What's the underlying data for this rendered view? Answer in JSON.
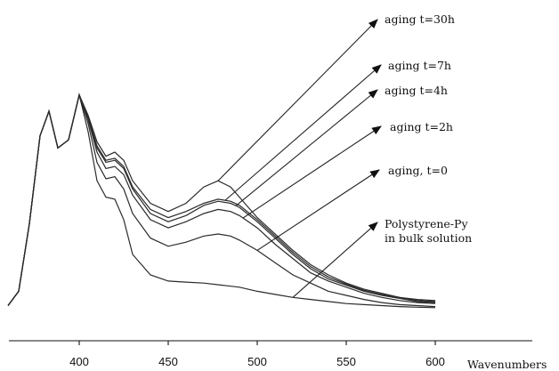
{
  "chart_data": {
    "type": "line",
    "xlabel": "Wavenumbers",
    "ylabel": "",
    "xlim": [
      355,
      600
    ],
    "x_ticks": [
      400,
      450,
      500,
      550,
      600
    ],
    "grid": false,
    "series": [
      {
        "name": "aging t=30h",
        "x": [
          360,
          366,
          372,
          378,
          383,
          388,
          394,
          400,
          405,
          410,
          415,
          420,
          425,
          430,
          440,
          450,
          460,
          470,
          478,
          485,
          490,
          500,
          510,
          520,
          530,
          540,
          550,
          560,
          570,
          580,
          590,
          600
        ],
        "y": [
          0.05,
          0.12,
          0.45,
          0.88,
          1.0,
          0.82,
          0.86,
          1.08,
          0.98,
          0.85,
          0.78,
          0.8,
          0.76,
          0.66,
          0.55,
          0.51,
          0.55,
          0.63,
          0.66,
          0.63,
          0.58,
          0.48,
          0.4,
          0.32,
          0.25,
          0.2,
          0.16,
          0.13,
          0.11,
          0.09,
          0.08,
          0.075
        ]
      },
      {
        "name": "aging t=7h",
        "x": [
          360,
          366,
          372,
          378,
          383,
          388,
          394,
          400,
          405,
          410,
          415,
          420,
          425,
          430,
          440,
          450,
          460,
          470,
          478,
          485,
          490,
          500,
          510,
          520,
          530,
          540,
          550,
          560,
          570,
          580,
          590,
          600
        ],
        "y": [
          0.05,
          0.12,
          0.45,
          0.88,
          1.0,
          0.82,
          0.86,
          1.08,
          0.97,
          0.83,
          0.76,
          0.77,
          0.73,
          0.63,
          0.52,
          0.48,
          0.51,
          0.55,
          0.57,
          0.56,
          0.54,
          0.47,
          0.39,
          0.31,
          0.24,
          0.19,
          0.155,
          0.125,
          0.105,
          0.09,
          0.075,
          0.07
        ]
      },
      {
        "name": "aging t=4h",
        "x": [
          360,
          366,
          372,
          378,
          383,
          388,
          394,
          400,
          405,
          410,
          415,
          420,
          425,
          430,
          440,
          450,
          460,
          470,
          478,
          485,
          490,
          500,
          510,
          520,
          530,
          540,
          550,
          560,
          570,
          580,
          590,
          600
        ],
        "y": [
          0.05,
          0.12,
          0.45,
          0.88,
          1.0,
          0.82,
          0.86,
          1.08,
          0.97,
          0.82,
          0.75,
          0.76,
          0.72,
          0.62,
          0.5,
          0.46,
          0.49,
          0.54,
          0.56,
          0.55,
          0.53,
          0.46,
          0.38,
          0.3,
          0.23,
          0.18,
          0.15,
          0.12,
          0.1,
          0.085,
          0.07,
          0.065
        ]
      },
      {
        "name": "aging t=2h",
        "x": [
          360,
          366,
          372,
          378,
          383,
          388,
          394,
          400,
          405,
          410,
          415,
          420,
          425,
          430,
          440,
          450,
          460,
          470,
          478,
          485,
          490,
          500,
          510,
          520,
          530,
          540,
          550,
          560,
          570,
          580,
          590,
          600
        ],
        "y": [
          0.05,
          0.12,
          0.45,
          0.88,
          1.0,
          0.82,
          0.86,
          1.08,
          0.96,
          0.8,
          0.72,
          0.73,
          0.69,
          0.59,
          0.47,
          0.43,
          0.46,
          0.5,
          0.52,
          0.51,
          0.49,
          0.43,
          0.35,
          0.28,
          0.21,
          0.17,
          0.14,
          0.11,
          0.09,
          0.075,
          0.065,
          0.06
        ]
      },
      {
        "name": "aging, t=0",
        "x": [
          360,
          366,
          372,
          378,
          383,
          388,
          394,
          400,
          405,
          410,
          415,
          420,
          425,
          430,
          440,
          450,
          460,
          470,
          478,
          485,
          490,
          500,
          510,
          520,
          530,
          540,
          550,
          560,
          570,
          580,
          590,
          600
        ],
        "y": [
          0.05,
          0.12,
          0.45,
          0.88,
          1.0,
          0.82,
          0.86,
          1.08,
          0.94,
          0.75,
          0.67,
          0.68,
          0.62,
          0.5,
          0.38,
          0.34,
          0.36,
          0.39,
          0.4,
          0.39,
          0.37,
          0.32,
          0.26,
          0.2,
          0.16,
          0.12,
          0.1,
          0.08,
          0.065,
          0.055,
          0.05,
          0.045
        ]
      },
      {
        "name": "Polystyrene-Py in bulk solution",
        "x": [
          360,
          366,
          372,
          378,
          383,
          388,
          394,
          400,
          405,
          410,
          415,
          420,
          425,
          430,
          440,
          450,
          460,
          470,
          480,
          490,
          500,
          510,
          520,
          530,
          540,
          550,
          560,
          570,
          580,
          590,
          600
        ],
        "y": [
          0.05,
          0.12,
          0.45,
          0.88,
          1.0,
          0.82,
          0.86,
          1.08,
          0.9,
          0.66,
          0.58,
          0.57,
          0.47,
          0.3,
          0.2,
          0.17,
          0.165,
          0.16,
          0.15,
          0.14,
          0.12,
          0.105,
          0.09,
          0.08,
          0.07,
          0.06,
          0.055,
          0.05,
          0.045,
          0.042,
          0.04
        ]
      }
    ],
    "annotations": [
      {
        "text": "aging t=30h",
        "series": 0,
        "x": 478
      },
      {
        "text": "aging t=7h",
        "series": 1,
        "x": 482
      },
      {
        "text": "aging t=4h",
        "series": 2,
        "x": 488
      },
      {
        "text": "aging t=2h",
        "series": 3,
        "x": 492
      },
      {
        "text": "aging, t=0",
        "series": 4,
        "x": 500
      },
      {
        "text": "Polystyrene-Py",
        "text2": "in bulk solution",
        "series": 5,
        "x": 520
      }
    ]
  }
}
